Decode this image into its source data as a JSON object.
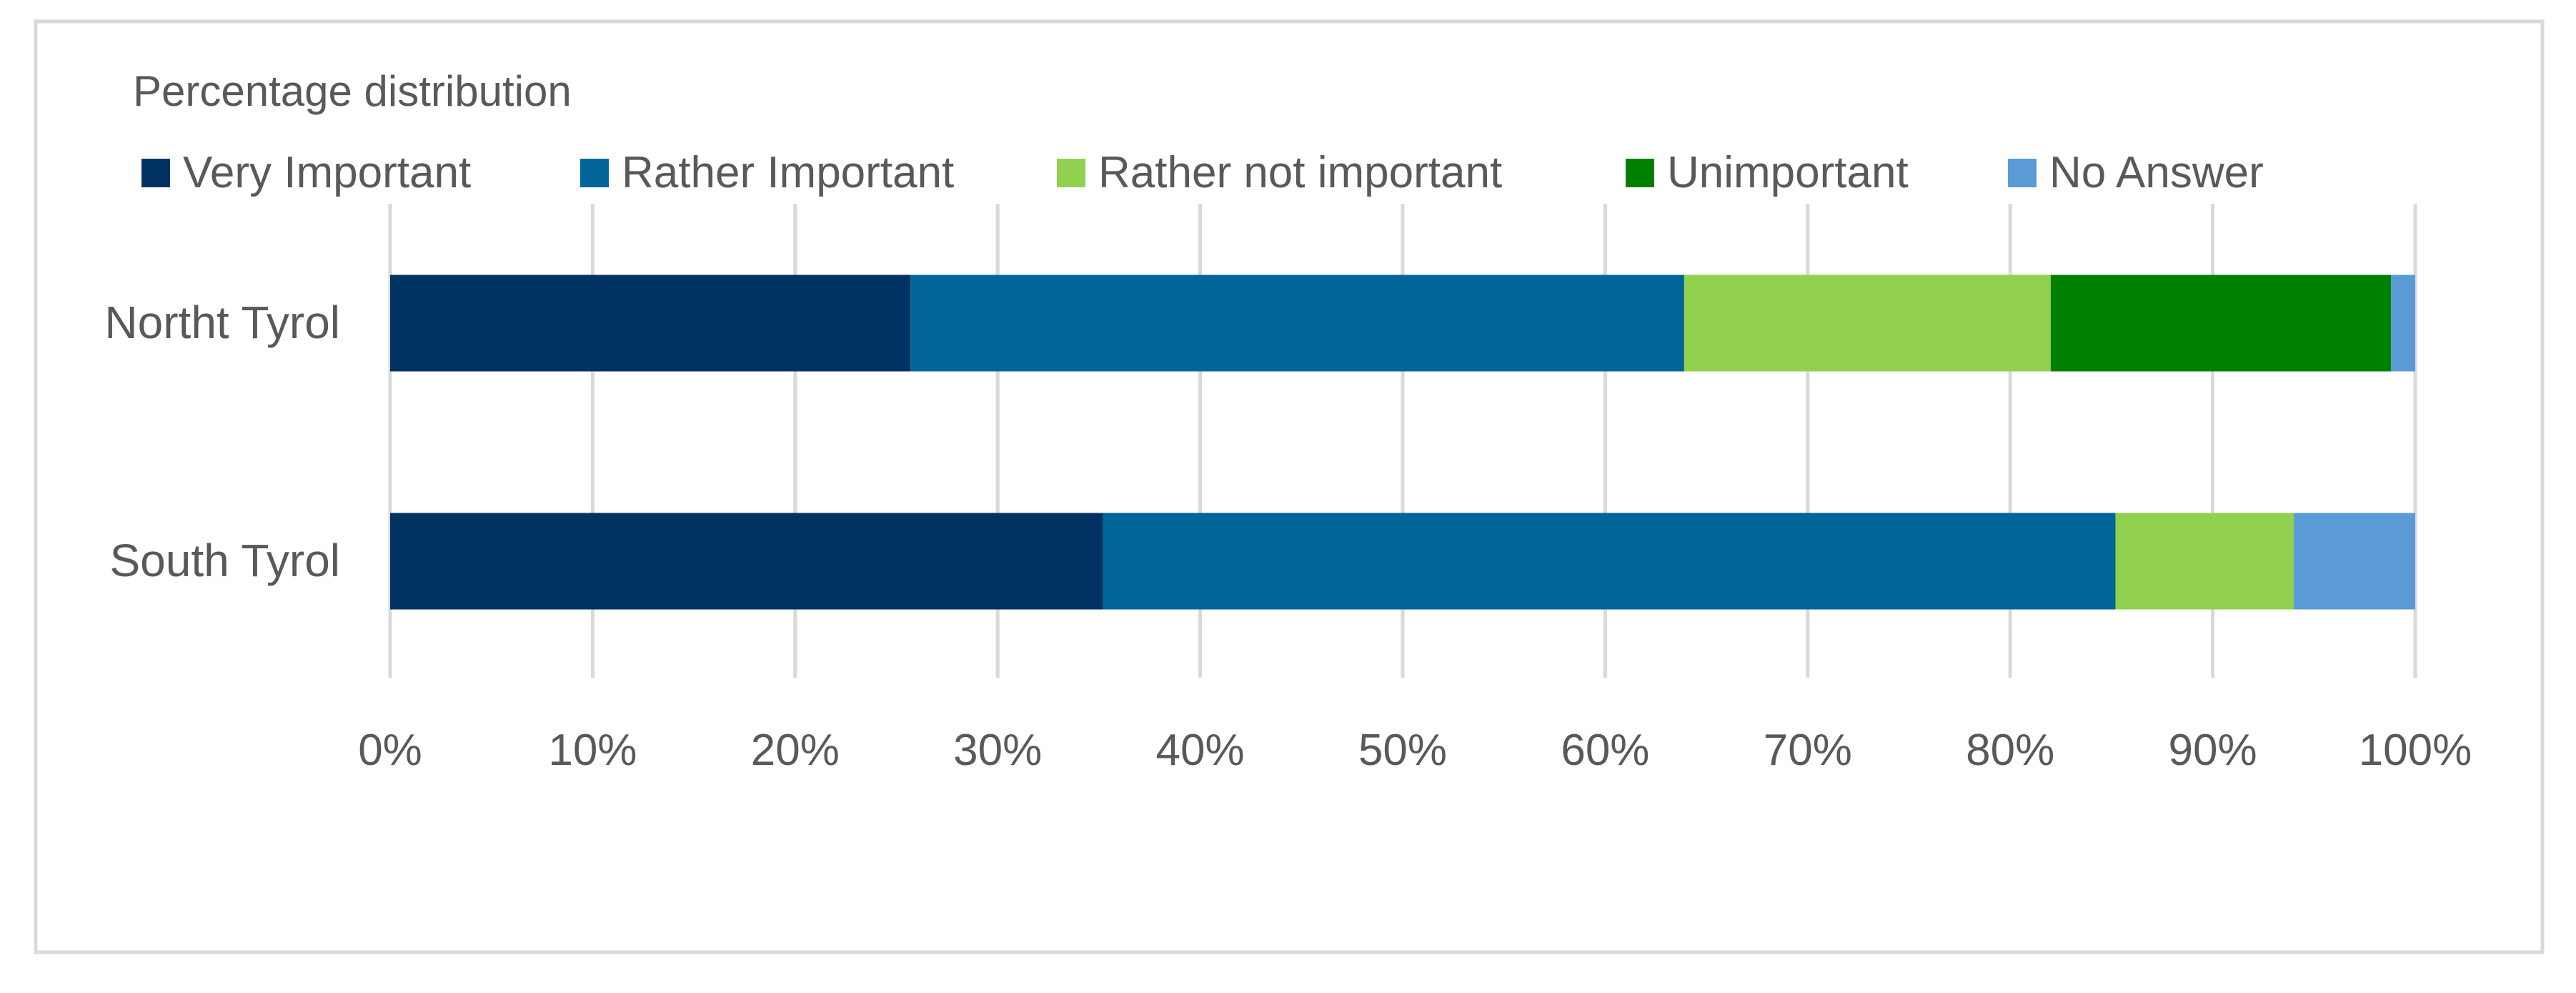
{
  "chart_data": {
    "type": "bar",
    "orientation": "horizontal",
    "stacked": true,
    "title": "Percentage distribution",
    "categories": [
      "Northt Tyrol",
      "South Tyrol"
    ],
    "series": [
      {
        "name": "Very Important",
        "color": "#003361",
        "values": [
          25.7,
          35.2
        ]
      },
      {
        "name": "Rather Important",
        "color": "#006699",
        "values": [
          38.2,
          50.0
        ]
      },
      {
        "name": "Rather not important",
        "color": "#92d050",
        "values": [
          18.1,
          8.8
        ]
      },
      {
        "name": "Unimportant",
        "color": "#008000",
        "values": [
          16.8,
          0.0
        ]
      },
      {
        "name": "No Answer",
        "color": "#5b9bd5",
        "values": [
          1.2,
          6.0
        ]
      }
    ],
    "xlim": [
      0,
      100
    ],
    "x_ticks": [
      "0%",
      "10%",
      "20%",
      "30%",
      "40%",
      "50%",
      "60%",
      "70%",
      "80%",
      "90%",
      "100%"
    ],
    "xlabel": "",
    "ylabel": "",
    "grid": true,
    "legend_position": "top-left"
  }
}
